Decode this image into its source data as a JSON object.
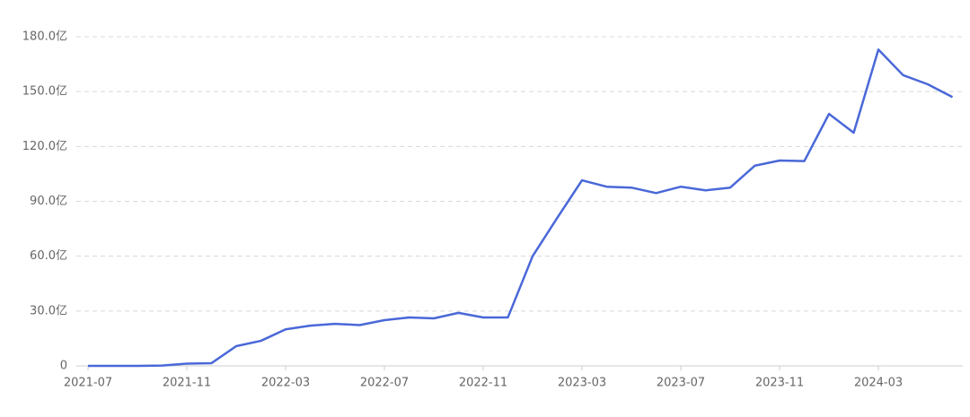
{
  "chart_data": {
    "type": "line",
    "categories": [
      "2021-07",
      null,
      null,
      null,
      "2021-11",
      null,
      null,
      null,
      "2022-03",
      null,
      null,
      null,
      "2022-07",
      null,
      null,
      null,
      "2022-11",
      null,
      null,
      null,
      "2023-03",
      null,
      null,
      null,
      "2023-07",
      null,
      null,
      null,
      "2023-11",
      null,
      null,
      null,
      "2024-03",
      null,
      null,
      null
    ],
    "series": [
      {
        "color": "#4a68d8",
        "values": [
          0,
          0,
          0,
          0.2,
          1.2,
          1.5,
          10.8,
          13.7,
          20,
          22,
          23,
          22.3,
          25,
          26.5,
          26,
          29,
          26.5,
          26.5,
          60,
          81,
          101.5,
          98,
          97.5,
          94.5,
          98,
          96,
          97.5,
          109.5,
          112.3,
          112,
          137.8,
          127.5,
          173,
          159,
          154,
          147
        ]
      }
    ],
    "ylim": [
      0,
      180
    ],
    "yticks": [
      0,
      {
        "value": 30,
        "label": "30.0亿"
      },
      {
        "value": 60,
        "label": "60.0亿"
      },
      {
        "value": 90,
        "label": "90.0亿"
      },
      {
        "value": 120,
        "label": "120.0亿"
      },
      {
        "value": 150,
        "label": "150.0亿"
      },
      {
        "value": 180,
        "label": "180.0亿"
      }
    ],
    "grid": true
  }
}
